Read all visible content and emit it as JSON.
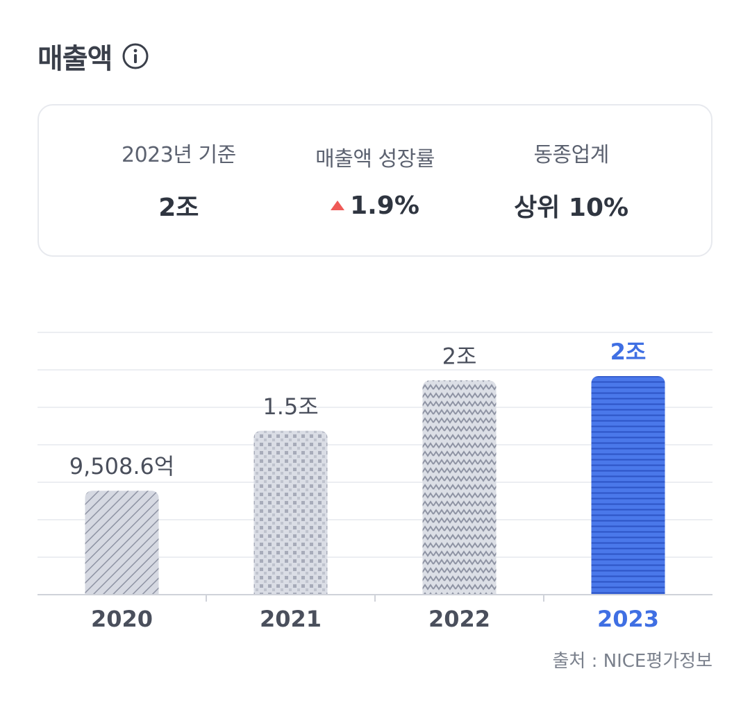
{
  "header": {
    "title": "매출액",
    "info_icon": "info-circle-icon"
  },
  "summary": [
    {
      "label": "2023년 기준",
      "value": "2조"
    },
    {
      "label": "매출액 성장률",
      "value": "1.9%",
      "trend": "up",
      "trend_icon": "triangle-up-icon",
      "trend_color": "#ef5a57"
    },
    {
      "label": "동종업계",
      "value": "상위 10%"
    }
  ],
  "chart_data": {
    "type": "bar",
    "categories": [
      "2020",
      "2021",
      "2022",
      "2023"
    ],
    "values": [
      0.95086,
      1.5,
      1.96,
      2.0
    ],
    "value_labels": [
      "9,508.6억",
      "1.5조",
      "2조",
      "2조"
    ],
    "unit": "조",
    "ylim": [
      0,
      2.4
    ],
    "grid": true,
    "highlight_index": 3,
    "colors": {
      "default_fill": "#d6d9e2",
      "pattern": "#8e93a3",
      "highlight": "#3f6fe3",
      "highlight_text": "#3f6fe3"
    }
  },
  "source": "출처 : NICE평가정보"
}
